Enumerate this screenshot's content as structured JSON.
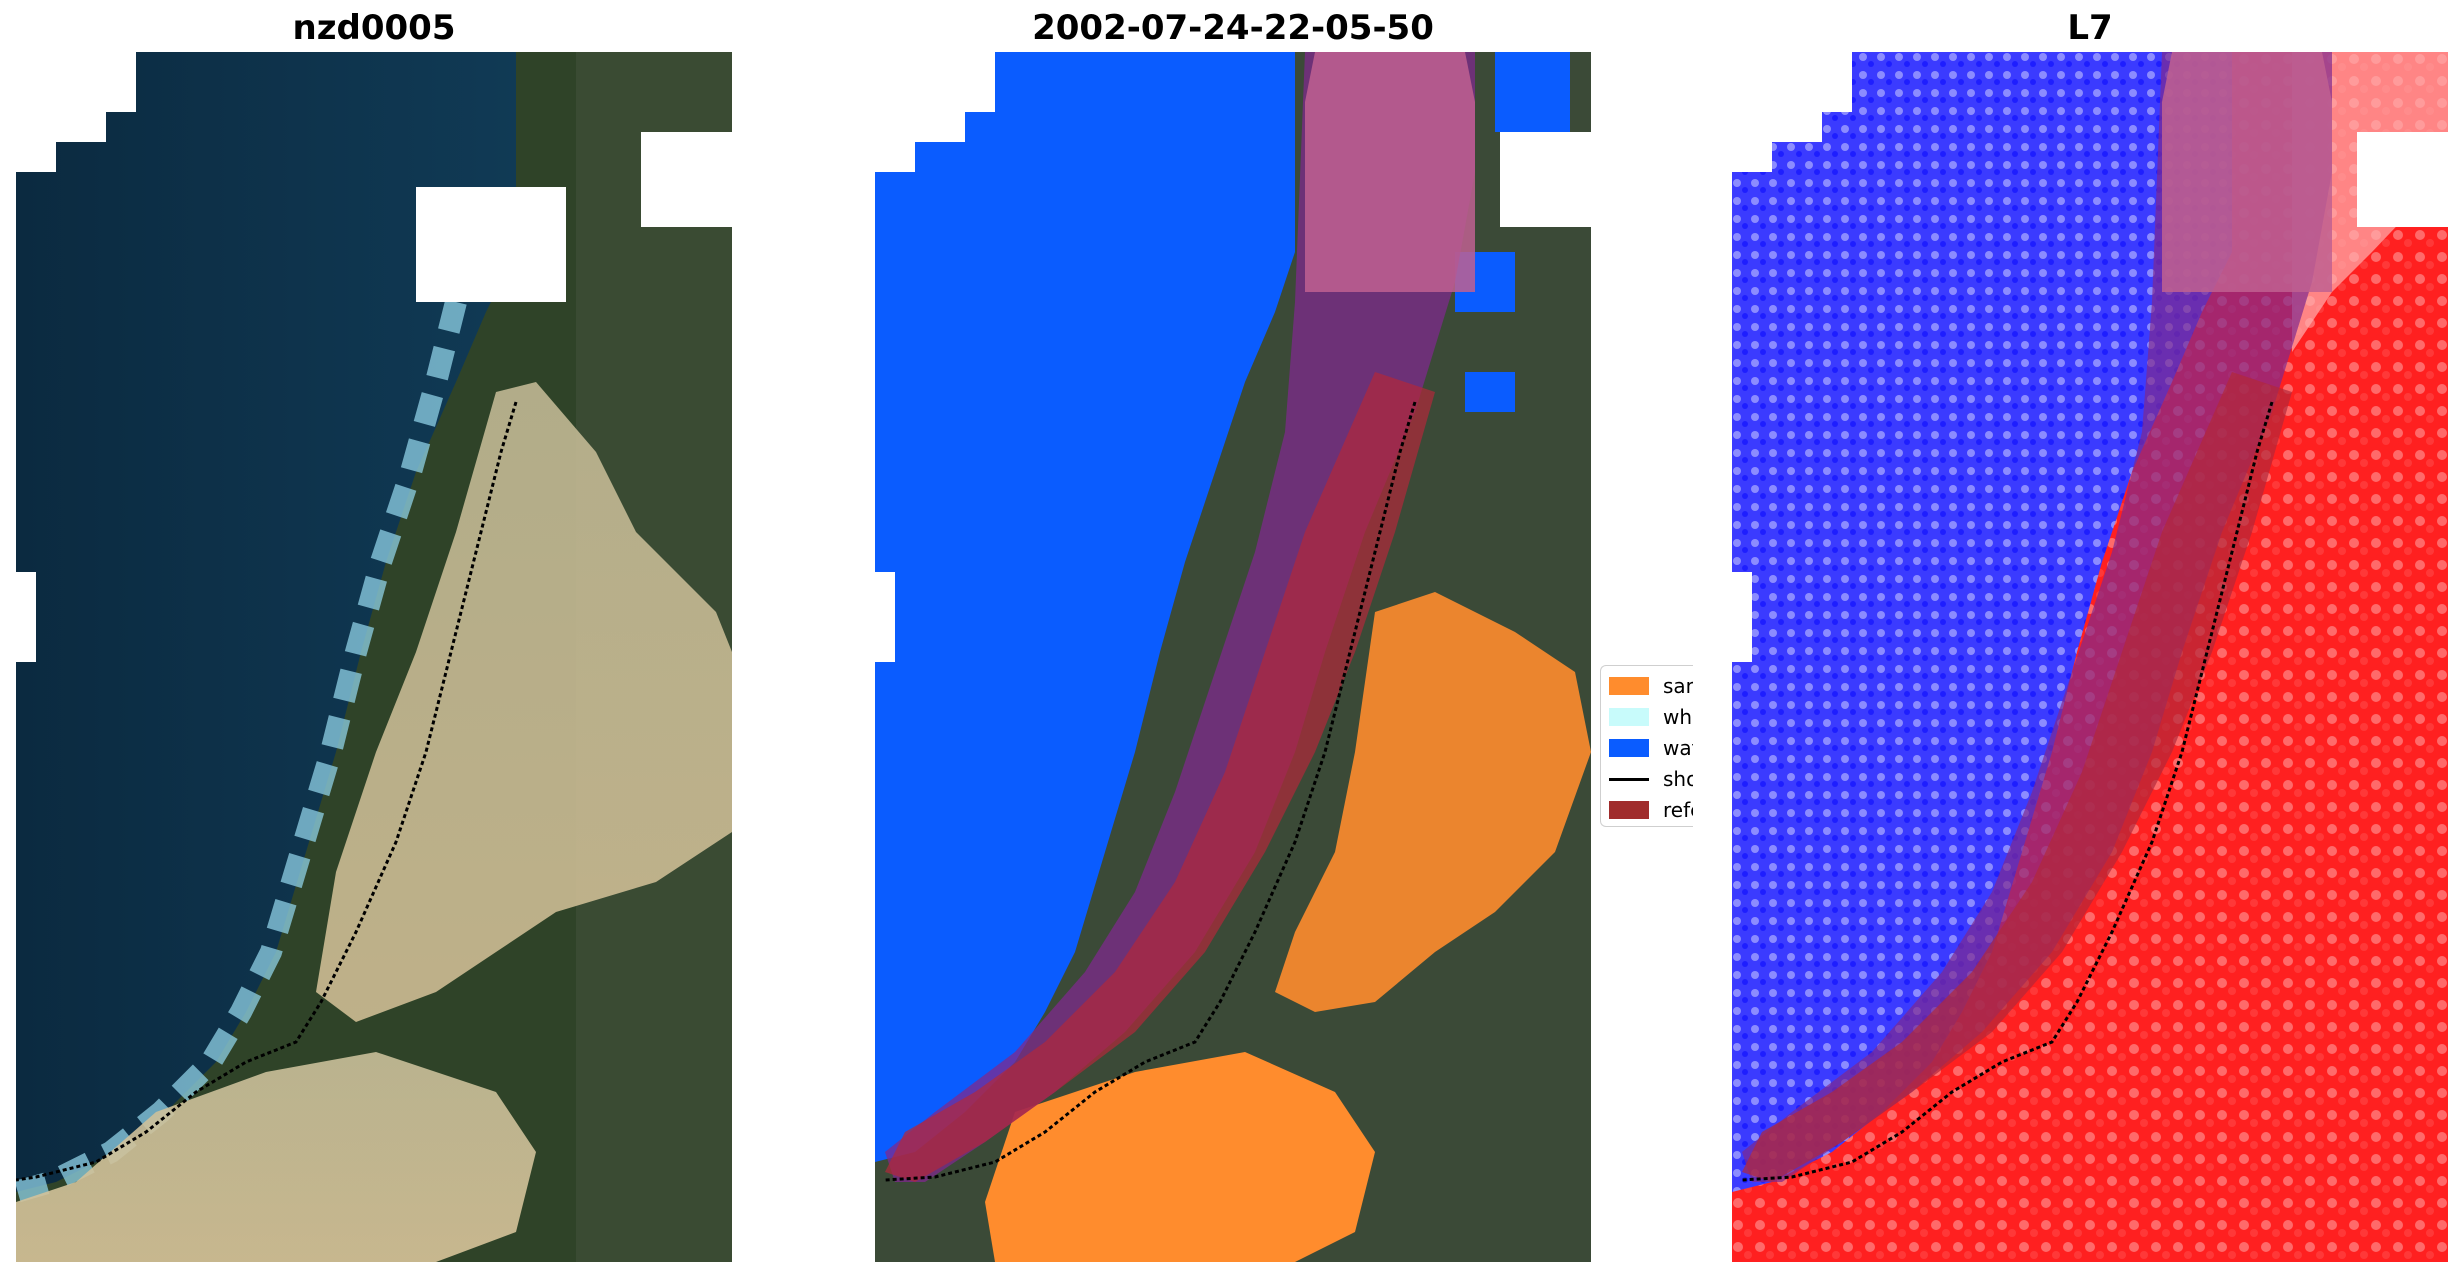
{
  "panels": [
    {
      "title": "nzd0005"
    },
    {
      "title": "2002-07-24-22-05-50"
    },
    {
      "title": "L7"
    }
  ],
  "legend": {
    "items": [
      {
        "label": "sand",
        "color": "#ff8c2d",
        "kind": "patch"
      },
      {
        "label": "whitew",
        "color": "#c8fbfb",
        "kind": "patch"
      },
      {
        "label": "water",
        "color": "#0a5cff",
        "kind": "patch"
      },
      {
        "label": "shorel",
        "color": "#000000",
        "kind": "line"
      },
      {
        "label": "referen",
        "color": "#a02c2c",
        "kind": "patch"
      }
    ]
  },
  "colors": {
    "ocean": "#0d2f45",
    "sand_rgb": "#cfc19a",
    "vegetation": "#334a2c",
    "water_class": "#0a5cff",
    "sand_class": "#ff8c2d",
    "buffer_overlay": "#7f2a8e",
    "reference_overlay": "#b2283a",
    "mndwi_water": "#3b3bff",
    "mndwi_land": "#ff2a2a",
    "cloud_mask": "#ffffff"
  }
}
